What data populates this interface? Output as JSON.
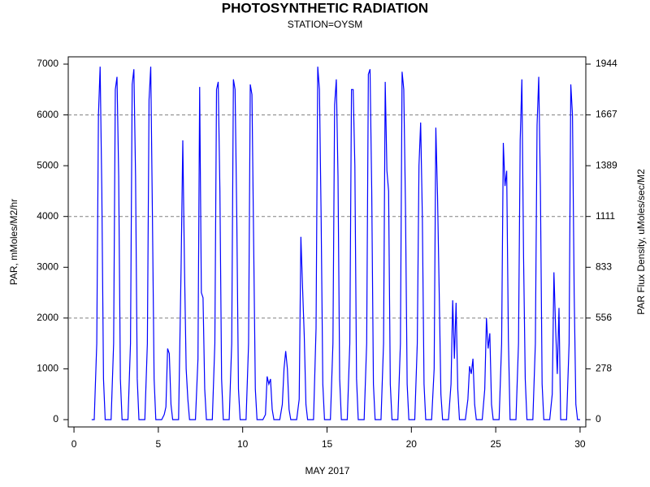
{
  "chart_data": {
    "type": "line",
    "title": "PHOTOSYNTHETIC RADIATION",
    "subtitle": "STATION=OYSM",
    "x_label": "MAY 2017",
    "y_label": "PAR, mMoles/M2/hr",
    "y2_label": "PAR Flux Density, uMoles/sec/M2",
    "xlim": [
      -0.34,
      30.34
    ],
    "ylim": [
      -144,
      7144
    ],
    "y2lim": [
      -40,
      1984.44
    ],
    "xticks": [
      0,
      5,
      10,
      15,
      20,
      25,
      30
    ],
    "yticks": [
      0,
      1000,
      2000,
      3000,
      4000,
      5000,
      6000,
      7000
    ],
    "y2ticks": [
      0,
      {
        "value": 277.78,
        "label": "278"
      },
      {
        "value": 555.56,
        "label": "556"
      },
      {
        "value": 833.33,
        "label": "833"
      },
      {
        "value": 1111.11,
        "label": "1111"
      },
      {
        "value": 1388.89,
        "label": "1389"
      },
      {
        "value": 1666.67,
        "label": "1667"
      },
      {
        "value": 1944.44,
        "label": "1944"
      }
    ],
    "grid": true,
    "x": [
      1.05,
      1.2,
      1.35,
      1.45,
      1.55,
      1.65,
      1.75,
      1.85,
      2.2,
      2.35,
      2.45,
      2.55,
      2.65,
      2.75,
      2.85,
      3.2,
      3.35,
      3.45,
      3.55,
      3.65,
      3.75,
      3.85,
      4.2,
      4.35,
      4.45,
      4.55,
      4.65,
      4.75,
      4.85,
      5.2,
      5.35,
      5.45,
      5.55,
      5.65,
      5.75,
      5.85,
      6.2,
      6.35,
      6.45,
      6.55,
      6.65,
      6.75,
      6.85,
      7.2,
      7.35,
      7.45,
      7.55,
      7.65,
      7.75,
      7.85,
      8.2,
      8.35,
      8.45,
      8.55,
      8.65,
      8.75,
      8.85,
      9.2,
      9.35,
      9.45,
      9.55,
      9.65,
      9.75,
      9.85,
      10.2,
      10.35,
      10.45,
      10.55,
      10.65,
      10.75,
      10.85,
      11.2,
      11.35,
      11.45,
      11.55,
      11.65,
      11.75,
      11.85,
      12.2,
      12.35,
      12.45,
      12.55,
      12.65,
      12.75,
      12.85,
      13.2,
      13.35,
      13.45,
      13.55,
      13.65,
      13.75,
      13.85,
      14.2,
      14.35,
      14.45,
      14.55,
      14.65,
      14.75,
      14.85,
      15.2,
      15.35,
      15.45,
      15.55,
      15.65,
      15.75,
      15.85,
      16.2,
      16.35,
      16.45,
      16.55,
      16.65,
      16.75,
      16.85,
      17.2,
      17.35,
      17.45,
      17.55,
      17.65,
      17.75,
      17.85,
      18.2,
      18.35,
      18.45,
      18.55,
      18.65,
      18.75,
      18.85,
      19.2,
      19.35,
      19.45,
      19.55,
      19.65,
      19.75,
      19.85,
      20.2,
      20.35,
      20.45,
      20.55,
      20.65,
      20.75,
      20.85,
      21.2,
      21.35,
      21.45,
      21.55,
      21.65,
      21.75,
      21.85,
      22.2,
      22.35,
      22.45,
      22.55,
      22.65,
      22.75,
      22.85,
      23.2,
      23.35,
      23.45,
      23.55,
      23.65,
      23.75,
      23.85,
      24.2,
      24.35,
      24.45,
      24.55,
      24.65,
      24.75,
      24.85,
      25.2,
      25.35,
      25.45,
      25.55,
      25.65,
      25.75,
      25.85,
      26.2,
      26.35,
      26.45,
      26.55,
      26.65,
      26.75,
      26.85,
      27.2,
      27.35,
      27.45,
      27.55,
      27.65,
      27.75,
      27.85,
      28.2,
      28.35,
      28.45,
      28.55,
      28.65,
      28.75,
      28.85,
      29.2,
      29.35,
      29.45,
      29.55,
      29.65,
      29.75,
      29.85,
      30.0
    ],
    "series": [
      {
        "color": "#0000ff",
        "values": [
          0,
          0,
          1500,
          6000,
          6950,
          4500,
          800,
          0,
          0,
          1500,
          6500,
          6750,
          4800,
          800,
          0,
          0,
          1500,
          6600,
          6900,
          4800,
          800,
          0,
          0,
          1500,
          6300,
          6950,
          4000,
          800,
          0,
          0,
          100,
          250,
          1400,
          1300,
          300,
          0,
          0,
          3000,
          5500,
          3000,
          1000,
          400,
          0,
          0,
          1200,
          6550,
          2500,
          2400,
          600,
          0,
          0,
          1500,
          6500,
          6650,
          4500,
          800,
          0,
          0,
          1500,
          6700,
          6500,
          4000,
          600,
          0,
          0,
          1500,
          6600,
          6400,
          3500,
          600,
          0,
          0,
          100,
          850,
          700,
          800,
          200,
          0,
          0,
          300,
          1000,
          1350,
          1000,
          200,
          0,
          0,
          400,
          3600,
          2600,
          1650,
          300,
          0,
          0,
          1800,
          6950,
          6500,
          4000,
          700,
          0,
          0,
          1500,
          6200,
          6700,
          4800,
          800,
          0,
          0,
          1500,
          6500,
          6500,
          5000,
          800,
          0,
          0,
          1500,
          6800,
          6900,
          4500,
          700,
          0,
          0,
          1500,
          6650,
          4900,
          4500,
          700,
          0,
          0,
          1500,
          6850,
          6500,
          4200,
          700,
          0,
          0,
          1500,
          5000,
          5850,
          4000,
          700,
          0,
          0,
          1000,
          5750,
          4400,
          2500,
          500,
          0,
          0,
          700,
          2350,
          1200,
          2300,
          600,
          0,
          0,
          400,
          1050,
          900,
          1200,
          300,
          0,
          0,
          600,
          2000,
          1400,
          1700,
          300,
          0,
          0,
          1500,
          5450,
          4600,
          4900,
          1600,
          0,
          0,
          1500,
          5500,
          6700,
          3200,
          800,
          0,
          0,
          1500,
          5800,
          6750,
          4500,
          700,
          0,
          0,
          500,
          2900,
          1800,
          900,
          2200,
          0,
          0,
          1500,
          6600,
          6000,
          2500,
          300,
          0,
          0
        ]
      }
    ]
  }
}
